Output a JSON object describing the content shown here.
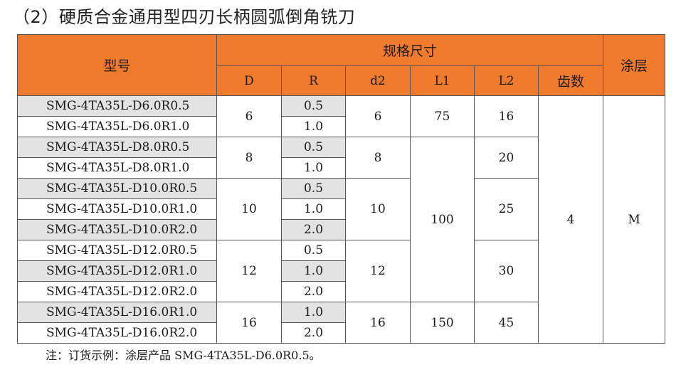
{
  "title": "（2）硬质合金通用型四刃长柄圆弧倒角铣刀",
  "colors": {
    "header": "#f07b2c",
    "shade": "#e3e3e3"
  },
  "table": {
    "headers": {
      "model": "型号",
      "spec": "规格尺寸",
      "coating": "涂层",
      "D": "D",
      "R": "R",
      "d2": "d2",
      "L1": "L1",
      "L2": "L2",
      "teeth": "齿数"
    },
    "rows": [
      {
        "model": "SMG-4TA35L-D6.0R0.5",
        "R": "0.5"
      },
      {
        "model": "SMG-4TA35L-D6.0R1.0",
        "R": "1.0"
      },
      {
        "model": "SMG-4TA35L-D8.0R0.5",
        "R": "0.5"
      },
      {
        "model": "SMG-4TA35L-D8.0R1.0",
        "R": "1.0"
      },
      {
        "model": "SMG-4TA35L-D10.0R0.5",
        "R": "0.5"
      },
      {
        "model": "SMG-4TA35L-D10.0R1.0",
        "R": "1.0"
      },
      {
        "model": "SMG-4TA35L-D10.0R2.0",
        "R": "2.0"
      },
      {
        "model": "SMG-4TA35L-D12.0R0.5",
        "R": "0.5"
      },
      {
        "model": "SMG-4TA35L-D12.0R1.0",
        "R": "1.0"
      },
      {
        "model": "SMG-4TA35L-D12.0R2.0",
        "R": "2.0"
      },
      {
        "model": "SMG-4TA35L-D16.0R1.0",
        "R": "1.0"
      },
      {
        "model": "SMG-4TA35L-D16.0R2.0",
        "R": "2.0"
      }
    ],
    "groups": [
      {
        "D": "6",
        "d2": "6"
      },
      {
        "D": "8",
        "d2": "8"
      },
      {
        "D": "10",
        "d2": "10"
      },
      {
        "D": "12",
        "d2": "12"
      },
      {
        "D": "16",
        "d2": "16"
      }
    ],
    "L1": [
      "75",
      "100",
      "150"
    ],
    "L2": [
      "16",
      "20",
      "25",
      "30",
      "45"
    ],
    "teeth": "4",
    "coating": "M"
  },
  "note": {
    "prefix": "注：订货示例：涂层产品",
    "code": "SMG-4TA35L-D6.0R0.5。"
  }
}
